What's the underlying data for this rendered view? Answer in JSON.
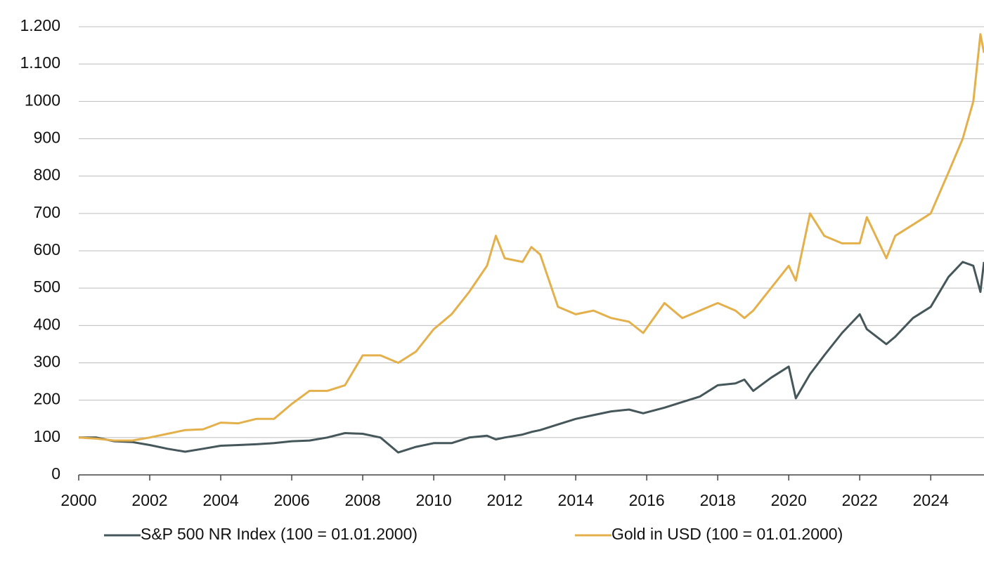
{
  "chart_data": {
    "type": "line",
    "x": [
      2000,
      2000.5,
      2001,
      2001.5,
      2002,
      2002.5,
      2003,
      2003.5,
      2004,
      2004.5,
      2005,
      2005.5,
      2006,
      2006.5,
      2007,
      2007.5,
      2008,
      2008.5,
      2009,
      2009.5,
      2010,
      2010.5,
      2011,
      2011.5,
      2011.75,
      2012,
      2012.5,
      2012.75,
      2013,
      2013.5,
      2014,
      2014.5,
      2015,
      2015.5,
      2015.9,
      2016.5,
      2017,
      2017.5,
      2018,
      2018.5,
      2018.75,
      2019,
      2019.5,
      2020,
      2020.2,
      2020.6,
      2021,
      2021.5,
      2022,
      2022.2,
      2022.75,
      2023,
      2023.5,
      2024,
      2024.5,
      2024.9,
      2025.2,
      2025.4,
      2025.5
    ],
    "series": [
      {
        "name": "S&P 500 NR Index (100 = 01.01.2000)",
        "color": "#45575a",
        "values": [
          100,
          100,
          90,
          88,
          80,
          70,
          62,
          70,
          78,
          80,
          82,
          85,
          90,
          92,
          100,
          112,
          110,
          100,
          60,
          75,
          85,
          85,
          100,
          105,
          95,
          100,
          108,
          115,
          120,
          135,
          150,
          160,
          170,
          175,
          165,
          180,
          195,
          210,
          240,
          245,
          255,
          225,
          260,
          290,
          205,
          270,
          320,
          380,
          430,
          390,
          350,
          370,
          420,
          450,
          530,
          570,
          560,
          490,
          570
        ]
      },
      {
        "name": "Gold in USD (100 = 01.01.2000)",
        "color": "#e3b04b",
        "values": [
          100,
          97,
          92,
          92,
          100,
          110,
          120,
          122,
          140,
          138,
          150,
          150,
          190,
          225,
          225,
          240,
          320,
          320,
          300,
          330,
          390,
          430,
          490,
          560,
          640,
          580,
          570,
          610,
          590,
          450,
          430,
          440,
          420,
          410,
          380,
          460,
          420,
          440,
          460,
          440,
          420,
          440,
          500,
          560,
          520,
          700,
          640,
          620,
          620,
          690,
          580,
          640,
          670,
          700,
          810,
          900,
          1000,
          1180,
          1130
        ]
      }
    ],
    "xlim": [
      2000,
      2025.5
    ],
    "xticks": [
      2000,
      2002,
      2004,
      2006,
      2008,
      2010,
      2012,
      2014,
      2016,
      2018,
      2020,
      2022,
      2024
    ],
    "ylim": [
      0,
      1200
    ],
    "yticks": [
      0,
      100,
      200,
      300,
      400,
      500,
      600,
      700,
      800,
      900,
      1000,
      {
        "value": 1100,
        "label": "1.100"
      },
      {
        "value": 1200,
        "label": "1.200"
      }
    ],
    "grid": true
  }
}
